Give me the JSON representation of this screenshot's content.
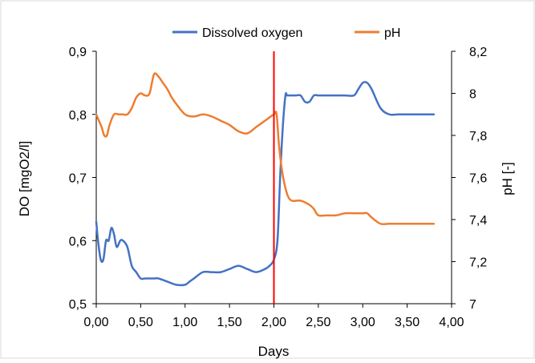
{
  "chart_data": {
    "type": "line",
    "title": "",
    "xlabel": "Days",
    "ylabel": "DO [mgO2/l]",
    "y2label": "pH [-]",
    "xlim": [
      0,
      4
    ],
    "ylim": [
      0.5,
      0.9
    ],
    "y2lim": [
      7,
      8.2
    ],
    "x_ticks": [
      "0,00",
      "0,50",
      "1,00",
      "1,50",
      "2,00",
      "2,50",
      "3,00",
      "3,50",
      "4,00"
    ],
    "y_ticks": [
      "0,5",
      "0,6",
      "0,7",
      "0,8",
      "0,9"
    ],
    "y2_ticks": [
      "7",
      "7,2",
      "7,4",
      "7,6",
      "7,8",
      "8",
      "8,2"
    ],
    "legend_position": "top",
    "grid": false,
    "vertical_marker": {
      "x": 2.0,
      "color": "#ff0000"
    },
    "series": [
      {
        "name": "Dissolved oxygen",
        "axis": "left",
        "color": "#4472c4",
        "x": [
          0.0,
          0.02,
          0.05,
          0.08,
          0.11,
          0.14,
          0.17,
          0.2,
          0.23,
          0.27,
          0.3,
          0.35,
          0.4,
          0.45,
          0.5,
          0.55,
          0.6,
          0.65,
          0.7,
          0.8,
          0.9,
          1.0,
          1.05,
          1.1,
          1.2,
          1.3,
          1.4,
          1.5,
          1.6,
          1.7,
          1.8,
          1.9,
          1.95,
          2.0,
          2.04,
          2.07,
          2.1,
          2.13,
          2.15,
          2.2,
          2.25,
          2.3,
          2.35,
          2.4,
          2.45,
          2.5,
          2.6,
          2.7,
          2.8,
          2.9,
          2.95,
          3.0,
          3.05,
          3.1,
          3.2,
          3.3,
          3.4,
          3.5,
          3.6,
          3.7,
          3.8
        ],
        "values": [
          0.63,
          0.6,
          0.57,
          0.57,
          0.6,
          0.6,
          0.62,
          0.61,
          0.59,
          0.6,
          0.6,
          0.59,
          0.56,
          0.55,
          0.54,
          0.54,
          0.54,
          0.54,
          0.54,
          0.535,
          0.53,
          0.53,
          0.535,
          0.54,
          0.55,
          0.55,
          0.55,
          0.555,
          0.56,
          0.555,
          0.55,
          0.555,
          0.56,
          0.57,
          0.6,
          0.7,
          0.78,
          0.83,
          0.83,
          0.83,
          0.83,
          0.83,
          0.82,
          0.82,
          0.83,
          0.83,
          0.83,
          0.83,
          0.83,
          0.83,
          0.84,
          0.85,
          0.85,
          0.84,
          0.81,
          0.8,
          0.8,
          0.8,
          0.8,
          0.8,
          0.8
        ]
      },
      {
        "name": "pH",
        "axis": "right",
        "color": "#ed7d31",
        "x": [
          0.0,
          0.03,
          0.06,
          0.09,
          0.12,
          0.15,
          0.2,
          0.25,
          0.3,
          0.35,
          0.4,
          0.45,
          0.5,
          0.55,
          0.6,
          0.65,
          0.7,
          0.75,
          0.8,
          0.85,
          0.9,
          1.0,
          1.1,
          1.2,
          1.3,
          1.4,
          1.5,
          1.6,
          1.7,
          1.8,
          1.9,
          2.0,
          2.03,
          2.06,
          2.1,
          2.15,
          2.2,
          2.3,
          2.4,
          2.45,
          2.5,
          2.6,
          2.7,
          2.8,
          2.9,
          3.0,
          3.05,
          3.1,
          3.2,
          3.3,
          3.4,
          3.5,
          3.6,
          3.7,
          3.8
        ],
        "values": [
          7.9,
          7.87,
          7.84,
          7.8,
          7.8,
          7.85,
          7.9,
          7.9,
          7.9,
          7.9,
          7.93,
          7.98,
          8.0,
          7.99,
          8.0,
          8.09,
          8.08,
          8.05,
          8.02,
          7.98,
          7.95,
          7.9,
          7.89,
          7.9,
          7.89,
          7.87,
          7.85,
          7.82,
          7.81,
          7.84,
          7.87,
          7.9,
          7.9,
          7.74,
          7.61,
          7.52,
          7.49,
          7.49,
          7.47,
          7.45,
          7.42,
          7.42,
          7.42,
          7.43,
          7.43,
          7.43,
          7.43,
          7.41,
          7.38,
          7.38,
          7.38,
          7.38,
          7.38,
          7.38,
          7.38
        ]
      }
    ]
  }
}
